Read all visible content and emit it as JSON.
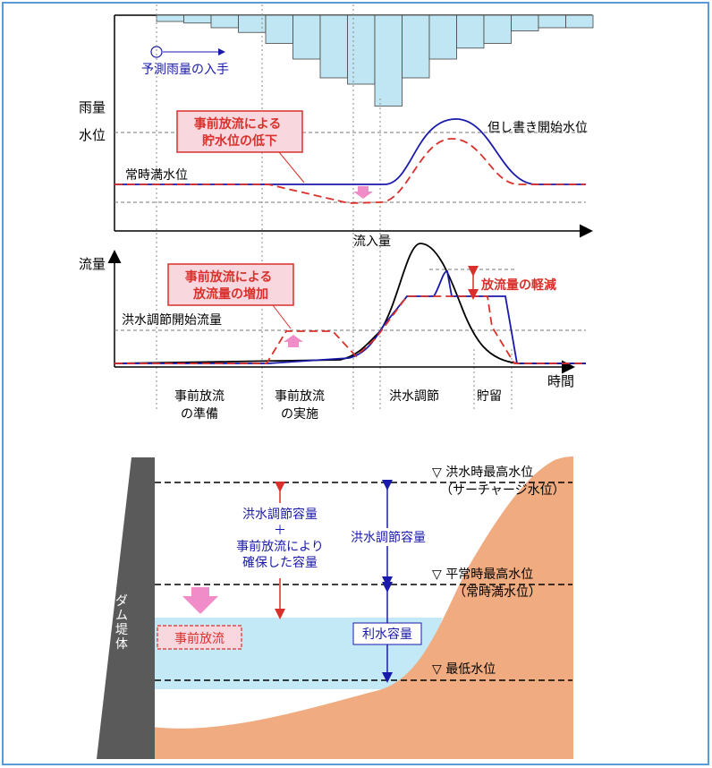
{
  "hydrograph": {
    "predict_rain_label": "予測雨量の入手",
    "y_rain": "雨量",
    "y_level": "水位",
    "level_annotation": "事前放流による\n貯水位の低下",
    "tadashi_label": "但し書き開始水位",
    "normal_full_label": "常時満水位",
    "inflow_label": "流入量",
    "y_flow": "流量",
    "flow_annotation": "事前放流による\n放流量の増加",
    "reduction_label": "放流量の軽減",
    "flood_start_flow_label": "洪水調節開始流量",
    "x_time": "時間",
    "phases": [
      "事前放流\nの準備",
      "事前放流\nの実施",
      "洪水調節",
      "貯留"
    ],
    "rain_bars": [
      0.2,
      0.25,
      0.4,
      0.55,
      0.9,
      1.4,
      2.0,
      2.2,
      2.9,
      2.0,
      1.4,
      1.05,
      0.9,
      0.5,
      0.4,
      0.4
    ]
  },
  "reservoir": {
    "dam_label": "ダム堤体",
    "flood_capacity_plus": "洪水調節容量\n＋\n事前放流により\n確保した容量",
    "flood_capacity": "洪水調節容量",
    "water_use_capacity": "利水容量",
    "pre_release_label": "事前放流",
    "level_high_flood": "▽ 洪水時最高水位",
    "level_high_flood_sub": "（サーチャージ水位）",
    "level_normal_high": "▽ 平常時最高水位",
    "level_normal_high_sub": "（常時満水位）",
    "level_min": "▽ 最低水位"
  },
  "colors": {
    "frame_blue": "#5b9bd5",
    "blue_line": "#1a1aaa",
    "red_dash": "#d9302b",
    "annotation_fill": "#f8d7de",
    "pink_arrow": "#f08cc7",
    "rain_fill": "#bfe6f2",
    "water": "#c3e8f6",
    "ground": "#f0ac80",
    "dam": "#5a5a5a"
  }
}
